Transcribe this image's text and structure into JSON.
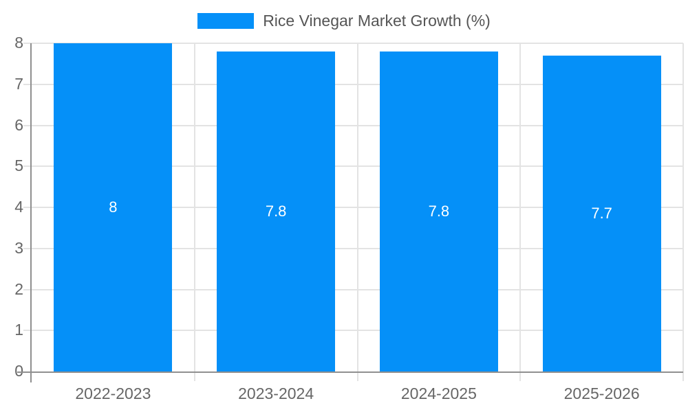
{
  "chart_data": {
    "type": "bar",
    "title": "Rice Vinegar Market Growth (%)",
    "categories": [
      "2022-2023",
      "2023-2024",
      "2024-2025",
      "2025-2026"
    ],
    "values": [
      8,
      7.8,
      7.8,
      7.7
    ],
    "value_labels": [
      "8",
      "7.8",
      "7.8",
      "7.7"
    ],
    "xlabel": "",
    "ylabel": "",
    "ylim": [
      0,
      8
    ],
    "yticks": [
      0,
      1,
      2,
      3,
      4,
      5,
      6,
      7,
      8
    ],
    "grid": true,
    "legend_position": "top-center",
    "colors": {
      "bar": "#0590f8",
      "axis": "#8f8f8f",
      "gridline": "#e3e3e3",
      "tick_label": "#666666",
      "legend_text": "#555555",
      "bar_label": "#ffffff",
      "background": "#ffffff"
    }
  }
}
